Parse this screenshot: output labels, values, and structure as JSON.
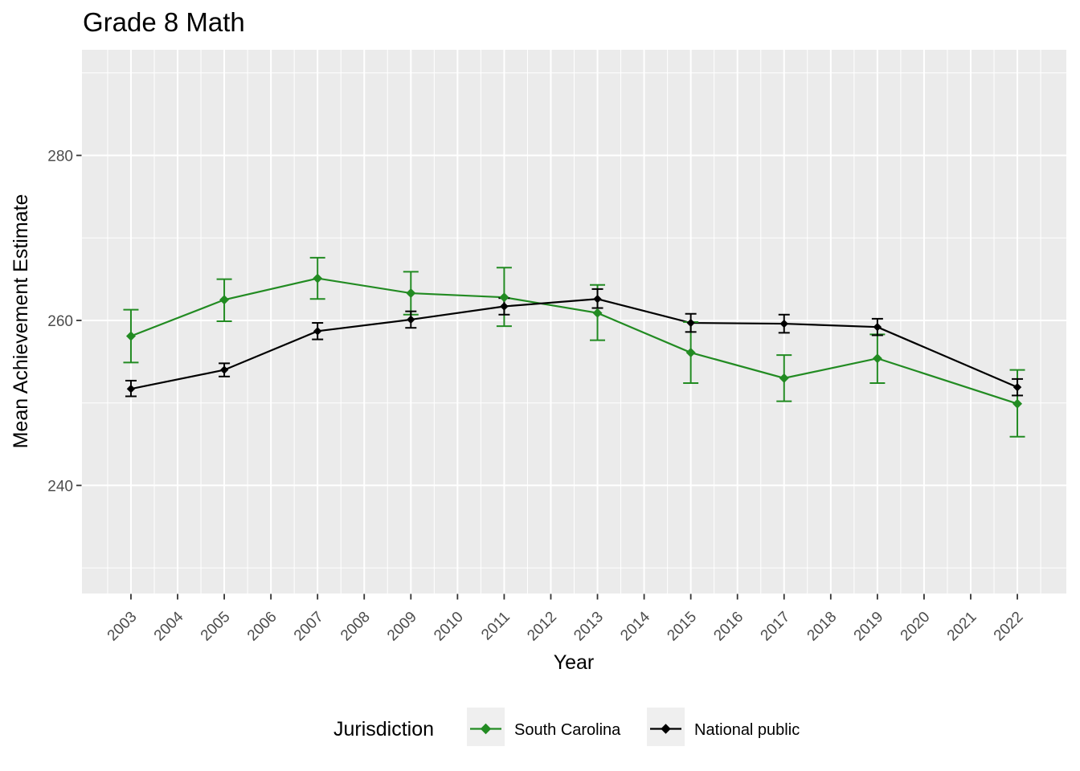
{
  "title": "Grade 8 Math",
  "legend": {
    "title": "Jurisdiction",
    "entries": [
      {
        "label": "South Carolina",
        "color": "#228B22"
      },
      {
        "label": "National public",
        "color": "#000000"
      }
    ]
  },
  "colors": {
    "panel_bg": "#EBEBEB",
    "grid": "#FFFFFF",
    "tick_mark": "#333333",
    "tick_text": "#4D4D4D",
    "legend_key_bg": "#EFEFEF",
    "background": "#FFFFFF"
  },
  "chart_data": {
    "type": "line",
    "title": "Grade 8 Math",
    "xlabel": "Year",
    "ylabel": "Mean Achievement Estimate",
    "legend_title": "Jurisdiction",
    "legend_position": "bottom",
    "grid": true,
    "error_bars": true,
    "marker": "diamond",
    "x_range": [
      2001.95,
      2023.05
    ],
    "y_range": [
      226.9,
      292.8
    ],
    "x_ticks": [
      2003,
      2004,
      2005,
      2006,
      2007,
      2008,
      2009,
      2010,
      2011,
      2012,
      2013,
      2014,
      2015,
      2016,
      2017,
      2018,
      2019,
      2020,
      2021,
      2022
    ],
    "x_minor": [
      2002.5,
      2003.5,
      2004.5,
      2005.5,
      2006.5,
      2007.5,
      2008.5,
      2009.5,
      2010.5,
      2011.5,
      2012.5,
      2013.5,
      2014.5,
      2015.5,
      2016.5,
      2017.5,
      2018.5,
      2019.5,
      2020.5,
      2021.5,
      2022.5
    ],
    "y_ticks": [
      240,
      260,
      280
    ],
    "y_minor": [
      230,
      250,
      270,
      290
    ],
    "series": [
      {
        "name": "South Carolina",
        "color": "#228B22",
        "x": [
          2003,
          2005,
          2007,
          2009,
          2011,
          2013,
          2015,
          2017,
          2019,
          2022
        ],
        "values": [
          258.1,
          262.5,
          265.1,
          263.3,
          262.8,
          260.9,
          256.1,
          253.0,
          255.4,
          249.9
        ],
        "ymin": [
          254.9,
          259.9,
          262.6,
          260.7,
          259.3,
          257.6,
          252.4,
          250.2,
          252.4,
          245.9
        ],
        "ymax": [
          261.3,
          265.0,
          267.6,
          265.9,
          266.4,
          264.3,
          259.8,
          255.8,
          258.3,
          254.0
        ]
      },
      {
        "name": "National public",
        "color": "#000000",
        "x": [
          2003,
          2005,
          2007,
          2009,
          2011,
          2013,
          2015,
          2017,
          2019,
          2022
        ],
        "values": [
          251.7,
          254.0,
          258.7,
          260.1,
          261.7,
          262.6,
          259.7,
          259.6,
          259.2,
          251.9
        ],
        "ymin": [
          250.8,
          253.2,
          257.7,
          259.1,
          260.7,
          261.5,
          258.6,
          258.5,
          258.2,
          250.9
        ],
        "ymax": [
          252.7,
          254.8,
          259.7,
          261.1,
          262.7,
          263.8,
          260.8,
          260.7,
          260.2,
          252.9
        ]
      }
    ]
  }
}
